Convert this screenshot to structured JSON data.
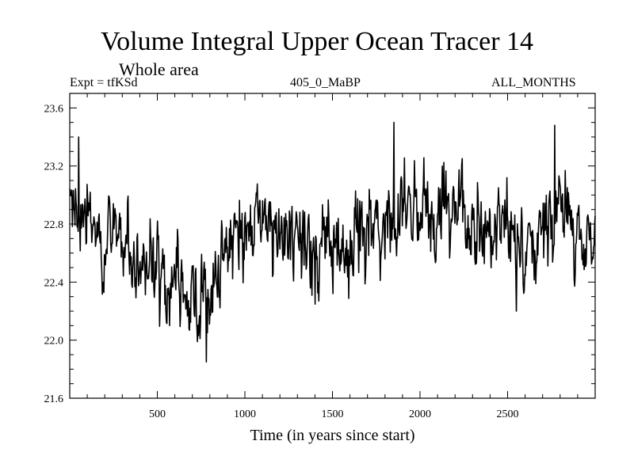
{
  "chart_data": {
    "type": "line",
    "title": "Volume Integral Upper Ocean Tracer 14",
    "subtitle": "Whole area",
    "experiment_label": "Expt = tfKSd",
    "center_label": "405_0_MaBP",
    "right_label": "ALL_MONTHS",
    "xlabel": "Time (in years since start)",
    "ylabel": "",
    "xlim": [
      0,
      3000
    ],
    "ylim": [
      21.6,
      23.7
    ],
    "xticks": [
      500,
      1000,
      1500,
      2000,
      2500
    ],
    "yticks": [
      21.6,
      22.0,
      22.4,
      22.8,
      23.2,
      23.6
    ],
    "xtick_labels": [
      "500",
      "1000",
      "1500",
      "2000",
      "2500"
    ],
    "ytick_labels": [
      "21.6",
      "22.0",
      "22.4",
      "22.8",
      "23.2",
      "23.6"
    ],
    "series": [
      {
        "name": "Tracer 14",
        "x": [
          0,
          50,
          100,
          150,
          200,
          250,
          300,
          350,
          400,
          450,
          500,
          550,
          600,
          650,
          700,
          750,
          800,
          850,
          900,
          950,
          1000,
          1050,
          1100,
          1150,
          1200,
          1250,
          1300,
          1350,
          1400,
          1450,
          1500,
          1550,
          1600,
          1650,
          1700,
          1750,
          1800,
          1850,
          1900,
          1950,
          2000,
          2050,
          2100,
          2150,
          2200,
          2250,
          2300,
          2350,
          2400,
          2450,
          2500,
          2550,
          2600,
          2650,
          2700,
          2750,
          2800,
          2850,
          2900,
          2950,
          3000
        ],
        "values": [
          22.95,
          22.9,
          22.85,
          22.8,
          22.75,
          22.7,
          22.6,
          22.55,
          22.5,
          22.45,
          22.45,
          22.4,
          22.35,
          22.35,
          22.3,
          22.3,
          22.35,
          22.45,
          22.65,
          22.75,
          22.8,
          22.82,
          22.75,
          22.72,
          22.7,
          22.7,
          22.68,
          22.66,
          22.65,
          22.65,
          22.68,
          22.7,
          22.7,
          22.72,
          22.72,
          22.75,
          22.8,
          22.85,
          22.9,
          22.88,
          22.85,
          22.82,
          22.82,
          22.8,
          22.8,
          22.82,
          22.82,
          22.8,
          22.8,
          22.82,
          22.8,
          22.72,
          22.72,
          22.75,
          22.8,
          22.85,
          22.9,
          22.85,
          22.8,
          22.75,
          22.72
        ],
        "noise_amplitude": 0.17,
        "notable_points": [
          {
            "x": 50,
            "y": 23.4
          },
          {
            "x": 780,
            "y": 21.85
          },
          {
            "x": 730,
            "y": 21.99
          },
          {
            "x": 1850,
            "y": 23.5
          },
          {
            "x": 2770,
            "y": 23.48
          },
          {
            "x": 2550,
            "y": 22.2
          }
        ]
      }
    ]
  }
}
